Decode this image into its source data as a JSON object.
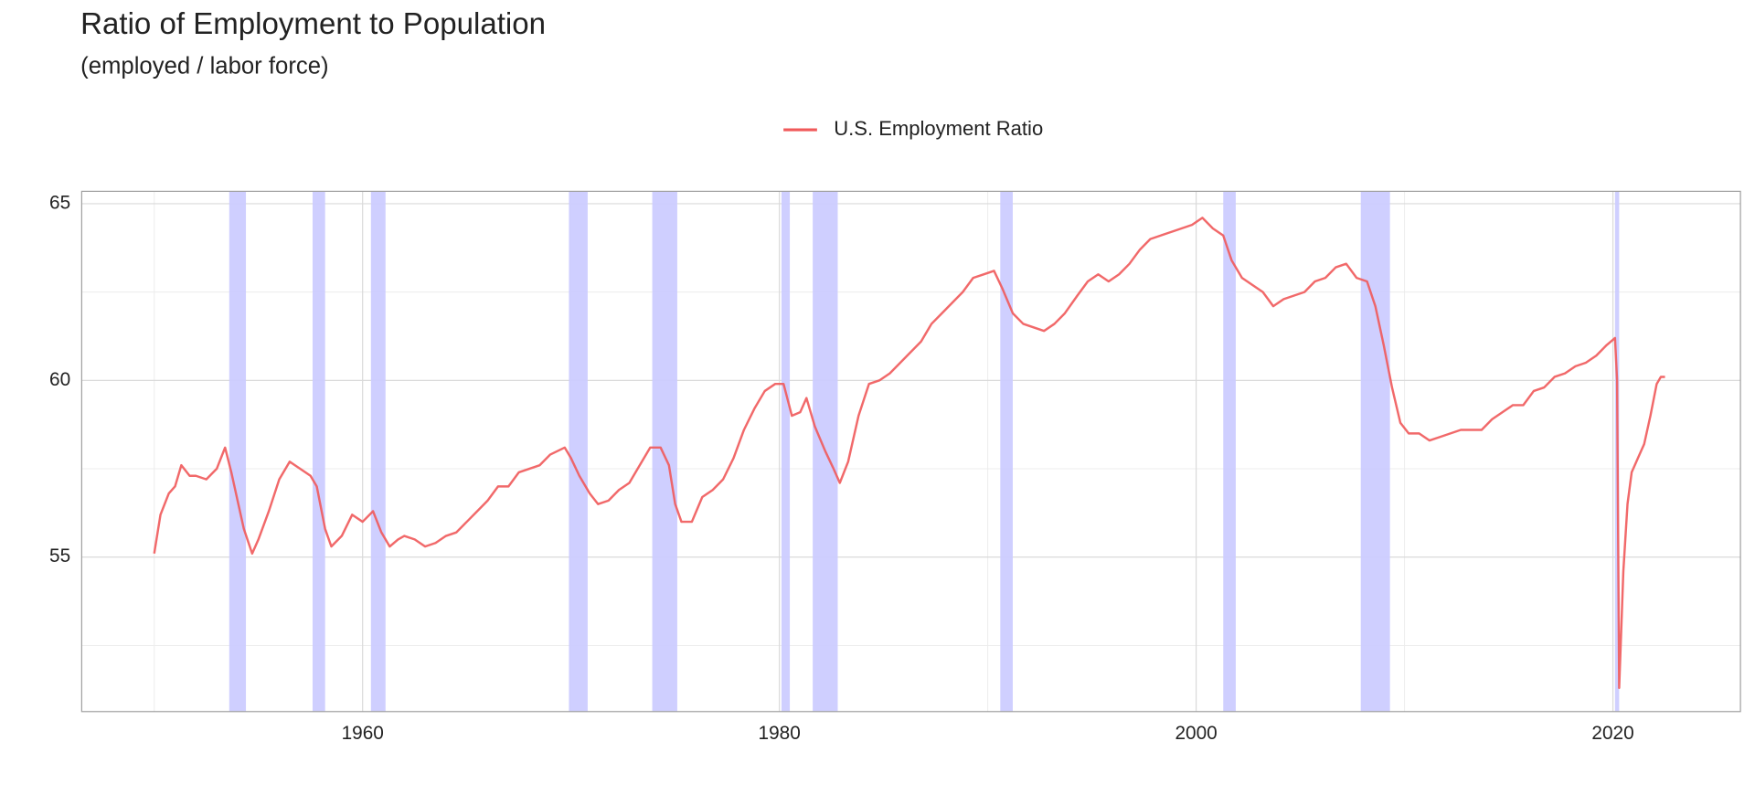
{
  "chart_data": {
    "type": "line",
    "title": "Ratio of Employment to Population",
    "subtitle": "(employed / labor force)",
    "x": [
      1950.0,
      1950.3,
      1950.7,
      1951.0,
      1951.3,
      1951.7,
      1952.0,
      1952.5,
      1953.0,
      1953.4,
      1953.7,
      1954.0,
      1954.3,
      1954.7,
      1955.0,
      1955.5,
      1956.0,
      1956.5,
      1957.0,
      1957.5,
      1957.8,
      1958.2,
      1958.5,
      1959.0,
      1959.5,
      1960.0,
      1960.5,
      1960.9,
      1961.3,
      1961.7,
      1962.0,
      1962.5,
      1963.0,
      1963.5,
      1964.0,
      1964.5,
      1965.0,
      1965.5,
      1966.0,
      1966.5,
      1967.0,
      1967.5,
      1968.0,
      1968.5,
      1969.0,
      1969.7,
      1970.0,
      1970.4,
      1970.9,
      1971.3,
      1971.8,
      1972.3,
      1972.8,
      1973.3,
      1973.8,
      1974.3,
      1974.7,
      1975.0,
      1975.3,
      1975.8,
      1976.3,
      1976.8,
      1977.3,
      1977.8,
      1978.3,
      1978.8,
      1979.3,
      1979.8,
      1980.2,
      1980.6,
      1981.0,
      1981.3,
      1981.7,
      1982.2,
      1982.6,
      1982.9,
      1983.3,
      1983.8,
      1984.3,
      1984.8,
      1985.3,
      1985.8,
      1986.3,
      1986.8,
      1987.3,
      1987.8,
      1988.3,
      1988.8,
      1989.3,
      1989.8,
      1990.3,
      1990.7,
      1991.2,
      1991.7,
      1992.2,
      1992.7,
      1993.2,
      1993.7,
      1994.3,
      1994.8,
      1995.3,
      1995.8,
      1996.3,
      1996.8,
      1997.3,
      1997.8,
      1998.3,
      1998.8,
      1999.3,
      1999.8,
      2000.3,
      2000.8,
      2001.3,
      2001.7,
      2002.2,
      2002.7,
      2003.2,
      2003.7,
      2004.2,
      2004.7,
      2005.2,
      2005.7,
      2006.2,
      2006.7,
      2007.2,
      2007.7,
      2008.2,
      2008.6,
      2009.0,
      2009.4,
      2009.8,
      2010.2,
      2010.7,
      2011.2,
      2011.7,
      2012.2,
      2012.7,
      2013.2,
      2013.7,
      2014.2,
      2014.7,
      2015.2,
      2015.7,
      2016.2,
      2016.7,
      2017.2,
      2017.7,
      2018.2,
      2018.7,
      2019.2,
      2019.7,
      2020.1,
      2020.2,
      2020.3,
      2020.5,
      2020.7,
      2020.9,
      2021.2,
      2021.5,
      2021.8,
      2022.1,
      2022.3,
      2022.5
    ],
    "series": [
      {
        "name": "U.S. Employment Ratio",
        "color": "#f0595a",
        "values": [
          55.1,
          56.2,
          56.8,
          57.0,
          57.6,
          57.3,
          57.3,
          57.2,
          57.5,
          58.1,
          57.4,
          56.6,
          55.8,
          55.1,
          55.5,
          56.3,
          57.2,
          57.7,
          57.5,
          57.3,
          57.0,
          55.8,
          55.3,
          55.6,
          56.2,
          56.0,
          56.3,
          55.7,
          55.3,
          55.5,
          55.6,
          55.5,
          55.3,
          55.4,
          55.6,
          55.7,
          56.0,
          56.3,
          56.6,
          57.0,
          57.0,
          57.4,
          57.5,
          57.6,
          57.9,
          58.1,
          57.8,
          57.3,
          56.8,
          56.5,
          56.6,
          56.9,
          57.1,
          57.6,
          58.1,
          58.1,
          57.6,
          56.5,
          56.0,
          56.0,
          56.7,
          56.9,
          57.2,
          57.8,
          58.6,
          59.2,
          59.7,
          59.9,
          59.9,
          59.0,
          59.1,
          59.5,
          58.7,
          58.0,
          57.5,
          57.1,
          57.7,
          59.0,
          59.9,
          60.0,
          60.2,
          60.5,
          60.8,
          61.1,
          61.6,
          61.9,
          62.2,
          62.5,
          62.9,
          63.0,
          63.1,
          62.6,
          61.9,
          61.6,
          61.5,
          61.4,
          61.6,
          61.9,
          62.4,
          62.8,
          63.0,
          62.8,
          63.0,
          63.3,
          63.7,
          64.0,
          64.1,
          64.2,
          64.3,
          64.4,
          64.6,
          64.3,
          64.1,
          63.4,
          62.9,
          62.7,
          62.5,
          62.1,
          62.3,
          62.4,
          62.5,
          62.8,
          62.9,
          63.2,
          63.3,
          62.9,
          62.8,
          62.1,
          61.0,
          59.8,
          58.8,
          58.5,
          58.5,
          58.3,
          58.4,
          58.5,
          58.6,
          58.6,
          58.6,
          58.9,
          59.1,
          59.3,
          59.3,
          59.7,
          59.8,
          60.1,
          60.2,
          60.4,
          60.5,
          60.7,
          61.0,
          61.2,
          60.0,
          51.3,
          54.6,
          56.5,
          57.4,
          57.8,
          58.2,
          59.0,
          59.9,
          60.1,
          60.1
        ]
      }
    ],
    "recessions": [
      [
        1953.6,
        1954.4
      ],
      [
        1957.6,
        1958.2
      ],
      [
        1960.4,
        1961.1
      ],
      [
        1969.9,
        1970.8
      ],
      [
        1973.9,
        1975.1
      ],
      [
        1980.1,
        1980.5
      ],
      [
        1981.6,
        1982.8
      ],
      [
        1990.6,
        1991.2
      ],
      [
        2001.3,
        2001.9
      ],
      [
        2007.9,
        2009.3
      ],
      [
        2020.1,
        2020.3
      ]
    ],
    "recession_color": "#ccccff",
    "xlim": [
      1946.52,
      2026.12
    ],
    "ylim": [
      50.63,
      65.35
    ],
    "xticks": [
      1960,
      1980,
      2000,
      2020
    ],
    "yticks": [
      55,
      60,
      65
    ],
    "x_minor_grid": [
      1950,
      1970,
      1990,
      2010
    ],
    "y_minor_grid": [
      52.5,
      57.5,
      62.5
    ],
    "grid": true,
    "legend": "top"
  }
}
